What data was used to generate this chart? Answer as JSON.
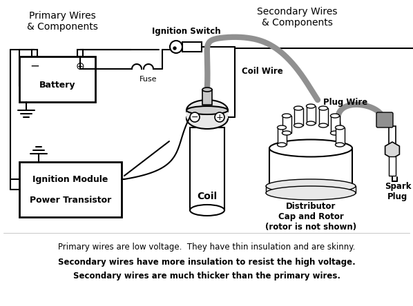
{
  "background_color": "#ffffff",
  "title_left": "Primary Wires\n& Components",
  "title_right": "Secondary Wires\n& Components",
  "label_battery": "Battery",
  "label_fuse": "Fuse",
  "label_ignition": "Ignition Switch",
  "label_coil": "Coil",
  "label_coil_wire": "Coil Wire",
  "label_module": "Ignition Module\n\nPower Transistor",
  "label_distributor": "Distributor\nCap and Rotor\n(rotor is not shown)",
  "label_plug_wire": "Plug Wire",
  "label_spark": "Spark\nPlug",
  "text_primary": "Primary wires are low voltage.  They have thin insulation and are skinny.",
  "text_secondary1": "Secondary wires have more insulation to resist the high voltage.",
  "text_secondary2": "Secondary wires are much thicker than the primary wires.",
  "wire_color_primary": "#000000",
  "wire_color_secondary": "#909090",
  "component_color": "#000000",
  "box_facecolor": "#ffffff",
  "box_edgecolor": "#000000",
  "figsize": [
    5.98,
    4.44
  ],
  "dpi": 100
}
